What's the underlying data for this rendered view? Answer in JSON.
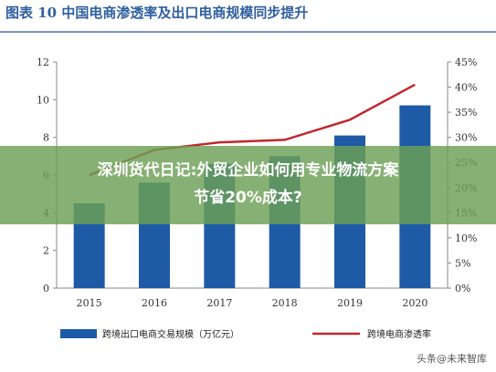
{
  "header": {
    "title": "图表 10   中国电商渗透率及出口电商规模同步提升"
  },
  "banner": {
    "line1": "深圳货代日记:外贸企业如何用专业物流方案",
    "line2": "节省20%成本?"
  },
  "watermark": "头条@未来智库",
  "colors": {
    "bar": "#1f5aa6",
    "line": "#c0282d",
    "title": "#2f5f9e",
    "banner": "#6ca056"
  },
  "chart_data": {
    "type": "bar",
    "categories": [
      "2015",
      "2016",
      "2017",
      "2018",
      "2019",
      "2020"
    ],
    "series": [
      {
        "name": "跨境出口电商交易规模（万亿元）",
        "type": "bar",
        "axis": "left",
        "values": [
          4.5,
          5.6,
          6.6,
          7.0,
          8.1,
          9.7
        ]
      },
      {
        "name": "跨境电商渗透率",
        "type": "line",
        "axis": "right",
        "values": [
          22.5,
          27.5,
          29.0,
          29.5,
          33.5,
          40.5
        ]
      }
    ],
    "y_left": {
      "lim": [
        0,
        12
      ],
      "ticks": [
        "0",
        "2",
        "4",
        "6",
        "8",
        "10",
        "12"
      ]
    },
    "y_right": {
      "lim": [
        0,
        45
      ],
      "ticks": [
        "0%",
        "5%",
        "10%",
        "15%",
        "20%",
        "25%",
        "30%",
        "35%",
        "40%",
        "45%"
      ]
    },
    "grid": false,
    "legend": "bottom"
  }
}
